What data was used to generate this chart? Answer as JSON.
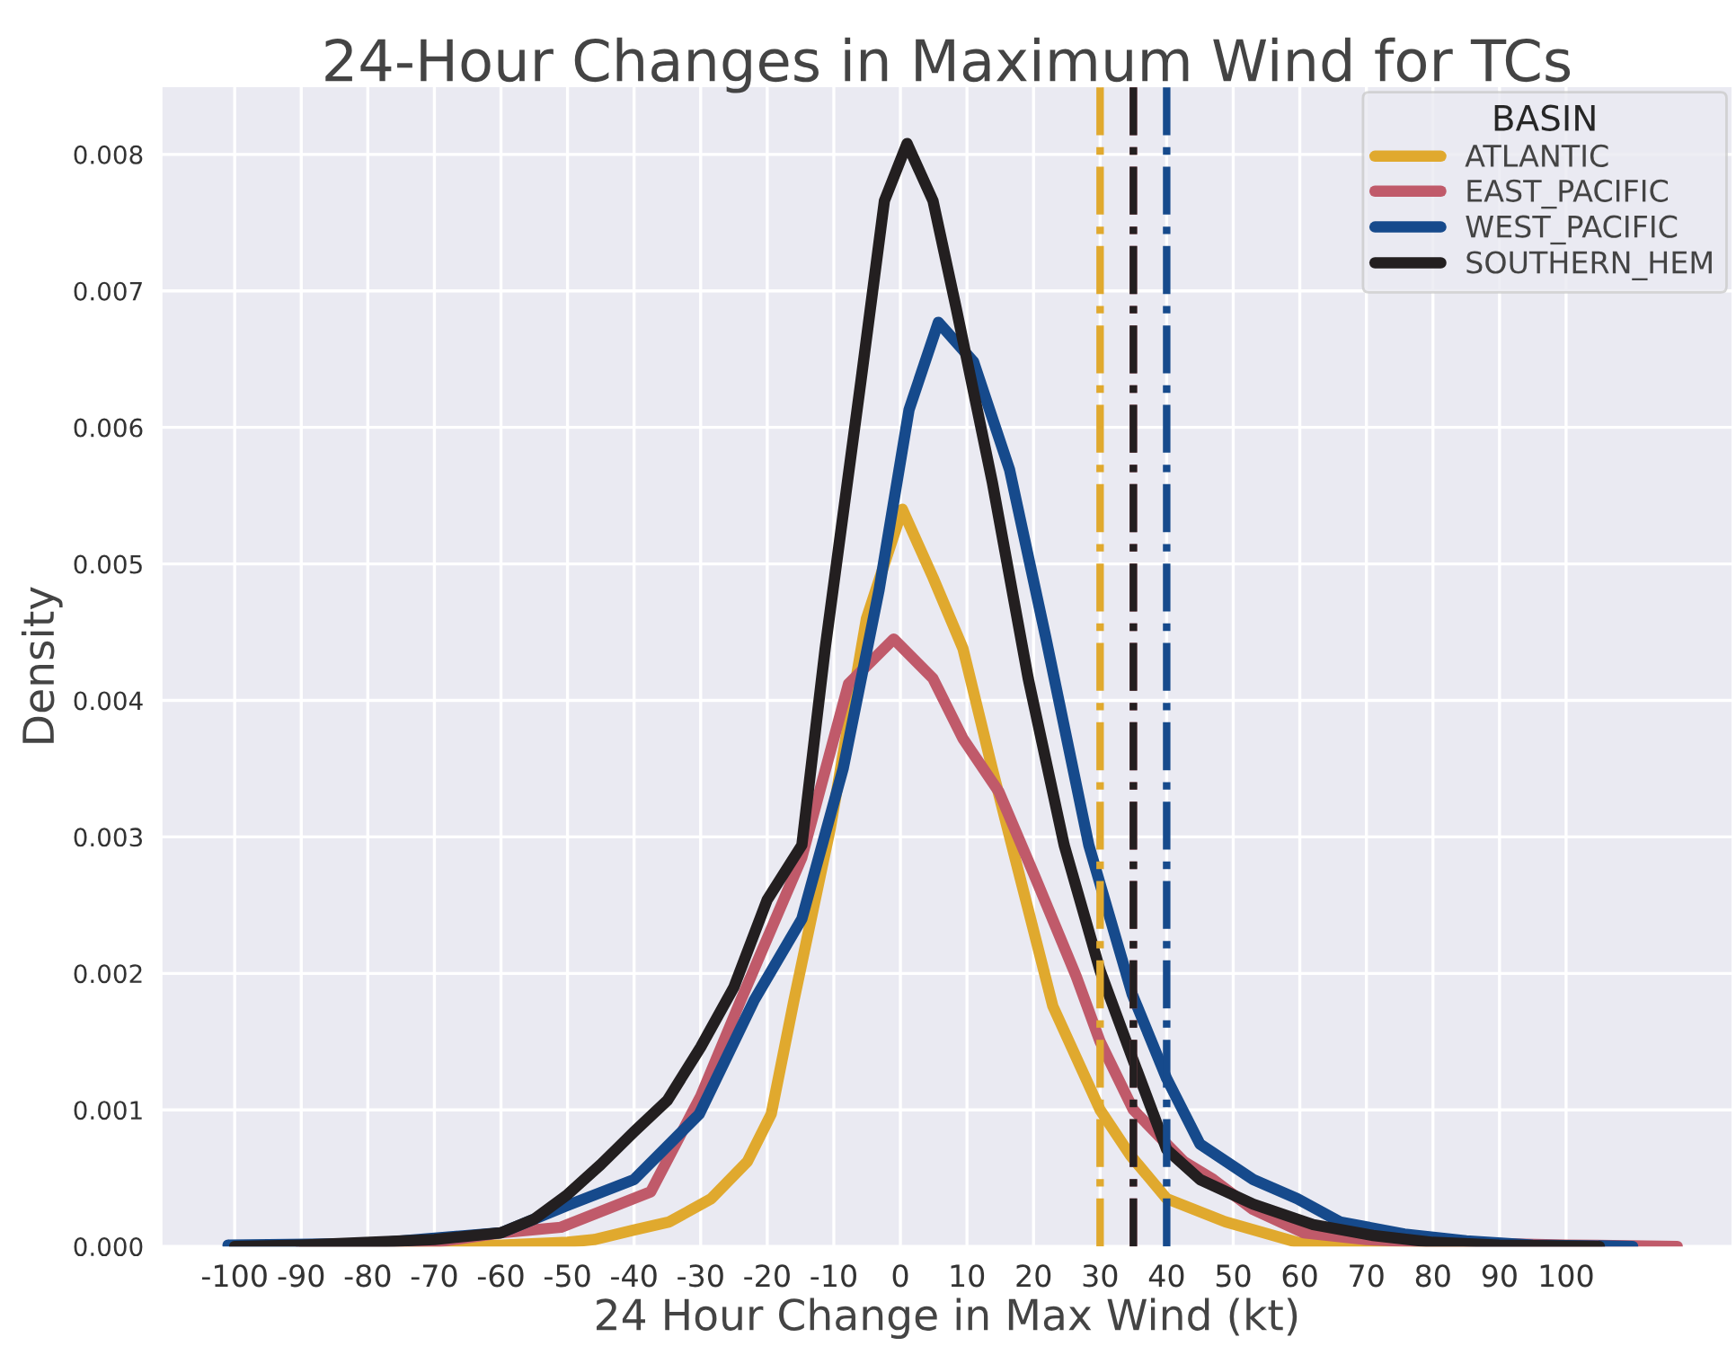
{
  "chart_data": {
    "type": "line",
    "title": "24-Hour Changes in Maximum Wind for TCs",
    "xlabel": "24 Hour Change in Max Wind (kt)",
    "ylabel": "Density",
    "legend_title": "BASIN",
    "legend": "top right",
    "grid": true,
    "line_style": "solid",
    "marker": "none",
    "xlim": [
      -111,
      125
    ],
    "ylim": [
      0,
      0.0085
    ],
    "xticks": [
      -100,
      -90,
      -80,
      -70,
      -60,
      -50,
      -40,
      -30,
      -20,
      -10,
      0,
      10,
      20,
      30,
      40,
      50,
      60,
      70,
      80,
      90,
      100
    ],
    "yticks": [
      {
        "value": 0,
        "label": "0.000"
      },
      {
        "value": 0.001,
        "label": "0.001"
      },
      {
        "value": 0.002,
        "label": "0.002"
      },
      {
        "value": 0.003,
        "label": "0.003"
      },
      {
        "value": 0.004,
        "label": "0.004"
      },
      {
        "value": 0.005,
        "label": "0.005"
      },
      {
        "value": 0.006,
        "label": "0.006"
      },
      {
        "value": 0.007,
        "label": "0.007"
      },
      {
        "value": 0.008,
        "label": "0.008"
      }
    ],
    "series": [
      {
        "name": "ATLANTIC",
        "color": "#e0a92e",
        "x": [
          -89.5,
          -60,
          -50,
          -46,
          -40,
          -34.7,
          -28.4,
          -23,
          -19.4,
          -16,
          -10.5,
          -5.1,
          0.3,
          4.9,
          9.4,
          13.8,
          18.3,
          22.9,
          30,
          34.5,
          40,
          48.8,
          59.6,
          70,
          85,
          104.6
        ],
        "values": [
          1e-05,
          1e-05,
          3e-05,
          5e-05,
          0.00012,
          0.00018,
          0.00035,
          0.00062,
          0.00097,
          0.0018,
          0.00307,
          0.0046,
          0.0054,
          0.0049,
          0.00438,
          0.0035,
          0.00264,
          0.00176,
          0.001,
          0.00067,
          0.00035,
          0.00018,
          3e-05,
          2e-05,
          1e-05,
          0
        ]
      },
      {
        "name": "EAST_PACIFIC",
        "color": "#c05a6a",
        "x": [
          -90,
          -70,
          -60,
          -51,
          -37.5,
          -30,
          -24,
          -14.8,
          -7.8,
          -1,
          4.9,
          9.4,
          14.8,
          20.2,
          26.4,
          30,
          35,
          42.6,
          47,
          53,
          60.6,
          70,
          80,
          100,
          116.7
        ],
        "values": [
          1e-05,
          3e-05,
          0.0001,
          0.00014,
          0.0004,
          0.0011,
          0.0018,
          0.00285,
          0.00412,
          0.00445,
          0.00416,
          0.00372,
          0.00333,
          0.00271,
          0.00198,
          0.0015,
          0.001,
          0.00062,
          0.00049,
          0.00027,
          0.0001,
          5e-05,
          3e-05,
          1e-05,
          0
        ]
      },
      {
        "name": "WEST_PACIFIC",
        "color": "#164a8c",
        "x": [
          -101,
          -80,
          -60,
          -50,
          -40,
          -30.2,
          -22,
          -14.8,
          -8.6,
          -3.2,
          1.3,
          5.7,
          11,
          16.4,
          21.8,
          28.3,
          34.8,
          40,
          45,
          53,
          59.6,
          66,
          75.7,
          85,
          95,
          110
        ],
        "values": [
          1e-05,
          2e-05,
          0.0001,
          0.0003,
          0.00049,
          0.00097,
          0.0018,
          0.0024,
          0.0035,
          0.00481,
          0.00613,
          0.00677,
          0.00648,
          0.00569,
          0.00447,
          0.00294,
          0.00185,
          0.00123,
          0.00075,
          0.00049,
          0.00035,
          0.00018,
          9e-05,
          4e-05,
          1e-05,
          0
        ]
      },
      {
        "name": "SOUTHERN_HEM",
        "color": "#231f20",
        "x": [
          -100,
          -90,
          -70,
          -60,
          -55,
          -50,
          -45,
          -40,
          -35,
          -30,
          -25,
          -20,
          -14.8,
          -11.3,
          -5.9,
          -2.4,
          1,
          4.9,
          8.4,
          13.8,
          19.2,
          24.6,
          30,
          35,
          40,
          45,
          53,
          62,
          71,
          80,
          90,
          105
        ],
        "values": [
          0,
          1e-05,
          5e-05,
          0.0001,
          0.0002,
          0.00038,
          0.0006,
          0.00084,
          0.00107,
          0.00146,
          0.0019,
          0.00254,
          0.00294,
          0.00438,
          0.00635,
          0.00766,
          0.00808,
          0.00766,
          0.00687,
          0.0056,
          0.00416,
          0.00294,
          0.00202,
          0.00136,
          0.00071,
          0.00049,
          0.00031,
          0.00016,
          8e-05,
          3e-05,
          1e-05,
          0
        ]
      }
    ],
    "ref_lines": [
      {
        "axis": "x",
        "value": 30,
        "color": "#e0a92e",
        "line_style": "dashdot"
      },
      {
        "axis": "x",
        "value": 35,
        "color": "#c05a6a",
        "line_style": "dashdot"
      },
      {
        "axis": "x",
        "value": 40,
        "color": "#164a8c",
        "line_style": "dashdot"
      },
      {
        "axis": "x",
        "value": 35,
        "color": "#231f20",
        "line_style": "dashdot"
      }
    ]
  }
}
